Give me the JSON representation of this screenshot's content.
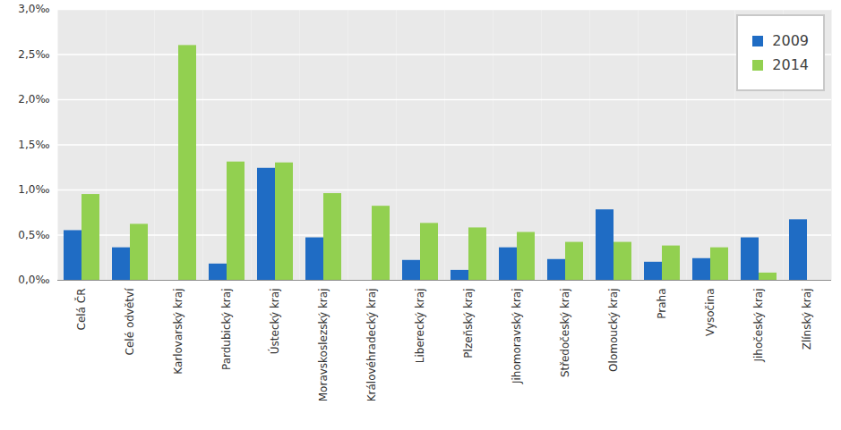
{
  "chart_data": {
    "type": "bar",
    "categories": [
      "Celá ČR",
      "Celé odvětví",
      "Karlovarský kraj",
      "Pardubický kraj",
      "Ústecký kraj",
      "Moravskoslezský kraj",
      "Královéhradecký kraj",
      "Liberecký kraj",
      "Plzeňský kraj",
      "Jihomoravský kraj",
      "Středočeský kraj",
      "Olomoucký kraj",
      "Praha",
      "Vysočina",
      "Jihočeský kraj",
      "Zlínský kraj"
    ],
    "series": [
      {
        "name": "2009",
        "color": "#1f6cc4",
        "values": [
          0.55,
          0.36,
          0,
          0.18,
          1.24,
          0.47,
          0,
          0.22,
          0.11,
          0.36,
          0.23,
          0.78,
          0.2,
          0.24,
          0.47,
          0.67
        ]
      },
      {
        "name": "2014",
        "color": "#92d050",
        "values": [
          0.95,
          0.62,
          2.6,
          1.31,
          1.3,
          0.96,
          0.82,
          0.63,
          0.58,
          0.53,
          0.42,
          0.42,
          0.38,
          0.36,
          0.08,
          0
        ]
      }
    ],
    "ylim": [
      0,
      3.0
    ],
    "yticks": [
      {
        "value": 0,
        "label": "0,0‰"
      },
      {
        "value": 0.5,
        "label": "0,5‰"
      },
      {
        "value": 1.0,
        "label": "1,0‰"
      },
      {
        "value": 1.5,
        "label": "1,5‰"
      },
      {
        "value": 2.0,
        "label": "2,0‰"
      },
      {
        "value": 2.5,
        "label": "2,5‰"
      },
      {
        "value": 3.0,
        "label": "3,0‰"
      }
    ],
    "grid": true,
    "legend": "top-right"
  }
}
